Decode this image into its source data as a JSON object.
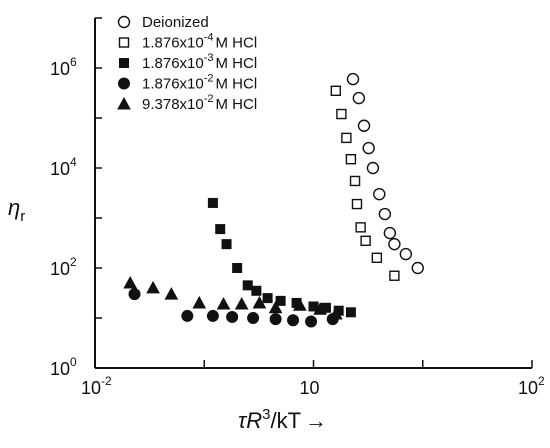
{
  "chart_data": {
    "type": "scatter",
    "title": "",
    "xlabel": "τR³/kT",
    "ylabel": "η_r",
    "xlabel_parts": {
      "main": "τR",
      "exp": "3",
      "tail": "/kT",
      "arrow": "→"
    },
    "ylabel_parts": {
      "main": "η",
      "sub": "r"
    },
    "x_scale": "log",
    "y_scale": "log",
    "xlim": [
      0.01,
      100
    ],
    "ylim": [
      1,
      10000000
    ],
    "x_ticks": [
      {
        "value": 0.01,
        "base": "10",
        "exp": "-2"
      },
      {
        "value": 1,
        "base": "10",
        "exp": ""
      },
      {
        "value": 100,
        "base": "10",
        "exp": "2"
      }
    ],
    "y_ticks": [
      {
        "value": 1,
        "base": "10",
        "exp": "0"
      },
      {
        "value": 100,
        "base": "10",
        "exp": "2"
      },
      {
        "value": 10000,
        "base": "10",
        "exp": "4"
      },
      {
        "value": 1000000,
        "base": "10",
        "exp": "6"
      }
    ],
    "grid": false,
    "legend_position": "top-left",
    "series": [
      {
        "name": "Deionized",
        "marker": "circle-open",
        "points": [
          [
            2.3,
            600000
          ],
          [
            2.6,
            250000
          ],
          [
            2.9,
            70000
          ],
          [
            3.2,
            25000
          ],
          [
            3.5,
            10000
          ],
          [
            4.0,
            3000
          ],
          [
            4.5,
            1200
          ],
          [
            5.0,
            500
          ],
          [
            5.5,
            300
          ],
          [
            7.0,
            190
          ],
          [
            9.0,
            100
          ]
        ]
      },
      {
        "name": "1.876x10⁻⁴M HCl",
        "marker": "square-open",
        "points": [
          [
            1.6,
            350000
          ],
          [
            1.8,
            120000
          ],
          [
            2.0,
            40000
          ],
          [
            2.2,
            15000
          ],
          [
            2.4,
            5500
          ],
          [
            2.5,
            1900
          ],
          [
            2.7,
            650
          ],
          [
            3.0,
            350
          ],
          [
            3.8,
            160
          ],
          [
            5.5,
            70
          ]
        ]
      },
      {
        "name": "1.876x10⁻³M HCl",
        "marker": "square-filled",
        "points": [
          [
            0.12,
            2000
          ],
          [
            0.14,
            600
          ],
          [
            0.16,
            300
          ],
          [
            0.2,
            100
          ],
          [
            0.25,
            45
          ],
          [
            0.3,
            35
          ],
          [
            0.38,
            25
          ],
          [
            0.5,
            22
          ],
          [
            0.7,
            20
          ],
          [
            1.0,
            17
          ],
          [
            1.3,
            16
          ],
          [
            1.7,
            14
          ],
          [
            2.2,
            13
          ]
        ]
      },
      {
        "name": "1.876x10⁻²M HCl",
        "marker": "circle-filled",
        "points": [
          [
            0.023,
            30
          ],
          [
            0.07,
            11
          ],
          [
            0.12,
            11
          ],
          [
            0.18,
            10.5
          ],
          [
            0.28,
            10
          ],
          [
            0.45,
            9.5
          ],
          [
            0.65,
            9
          ],
          [
            0.95,
            8.5
          ],
          [
            1.5,
            9.5
          ]
        ]
      },
      {
        "name": "9.378x10⁻²M HCl",
        "marker": "triangle-filled",
        "points": [
          [
            0.021,
            50
          ],
          [
            0.034,
            40
          ],
          [
            0.05,
            30
          ],
          [
            0.09,
            20
          ],
          [
            0.15,
            19
          ],
          [
            0.22,
            19
          ],
          [
            0.32,
            20
          ],
          [
            0.45,
            16
          ],
          [
            0.75,
            18
          ],
          [
            1.15,
            15
          ],
          [
            1.6,
            12
          ]
        ]
      }
    ],
    "legend_entries": [
      {
        "marker": "circle-open",
        "label": "Deionized"
      },
      {
        "marker": "square-open",
        "label": "1.876x10",
        "exp": "-4",
        "tail": "M HCl"
      },
      {
        "marker": "square-filled",
        "label": "1.876x10",
        "exp": "-3",
        "tail": "M HCl"
      },
      {
        "marker": "circle-filled",
        "label": "1.876x10",
        "exp": "-2",
        "tail": "M HCl"
      },
      {
        "marker": "triangle-filled",
        "label": "9.378x10",
        "exp": "-2",
        "tail": "M HCl"
      }
    ]
  }
}
